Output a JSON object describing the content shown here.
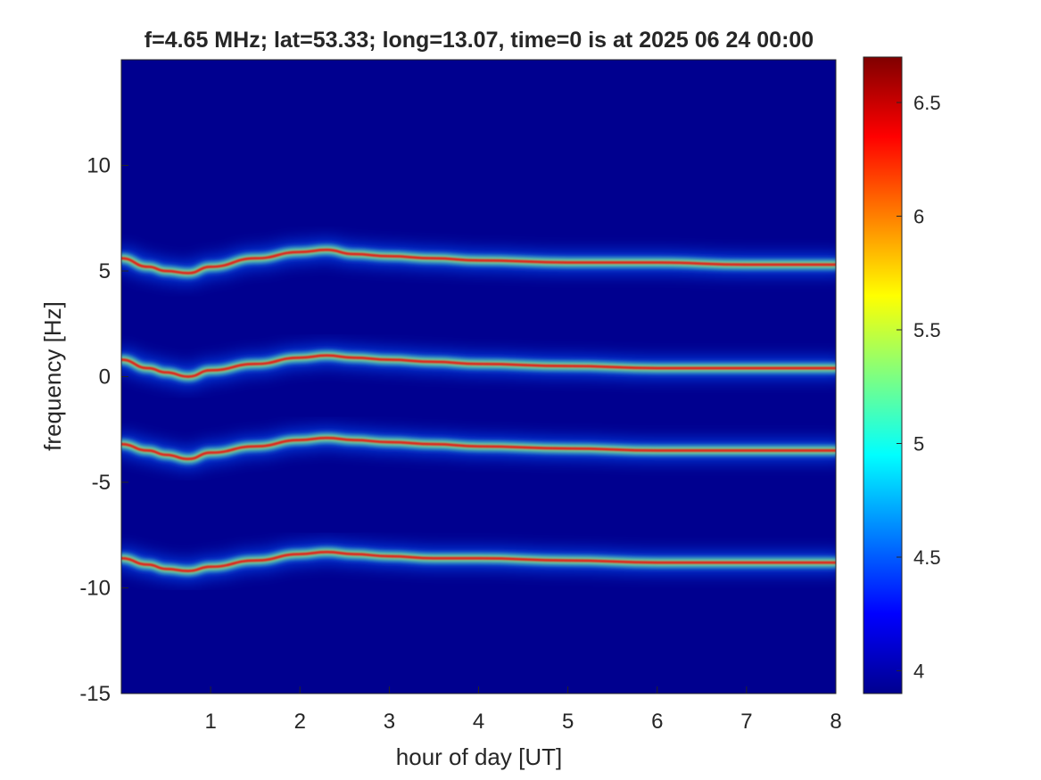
{
  "chart_data": {
    "type": "heatmap",
    "title": "f=4.65 MHz;  lat=53.33; long=13.07, time=0 is at 2025 06 24 00:00",
    "xlabel": "hour of day [UT]",
    "ylabel": "frequency [Hz]",
    "xlim": [
      0,
      8
    ],
    "ylim": [
      -15,
      15
    ],
    "x_ticks": [
      1,
      2,
      3,
      4,
      5,
      6,
      7,
      8
    ],
    "x_tick_labels": [
      "1",
      "2",
      "3",
      "4",
      "5",
      "6",
      "7",
      "8"
    ],
    "y_ticks": [
      10,
      5,
      0,
      -5,
      -10,
      -15
    ],
    "y_tick_labels": [
      "10",
      "5",
      "0",
      "-5",
      "-10",
      "-15"
    ],
    "grid": false,
    "colormap": "jet",
    "background_color": "#00008f",
    "colorbar": {
      "range": [
        3.9,
        6.7
      ],
      "ticks": [
        4,
        4.5,
        5,
        5.5,
        6,
        6.5
      ],
      "tick_labels": [
        "4",
        "4.5",
        "5",
        "5.5",
        "6",
        "6.5"
      ]
    },
    "traces": [
      {
        "points": [
          [
            0,
            5.6
          ],
          [
            0.3,
            5.2
          ],
          [
            0.5,
            5.0
          ],
          [
            0.75,
            4.9
          ],
          [
            1.0,
            5.2
          ],
          [
            1.5,
            5.6
          ],
          [
            2.0,
            5.9
          ],
          [
            2.3,
            6.0
          ],
          [
            2.6,
            5.8
          ],
          [
            3.0,
            5.7
          ],
          [
            3.5,
            5.6
          ],
          [
            4.0,
            5.5
          ],
          [
            5.0,
            5.4
          ],
          [
            6.0,
            5.4
          ],
          [
            7.0,
            5.3
          ],
          [
            8.0,
            5.3
          ]
        ]
      },
      {
        "points": [
          [
            0,
            0.8
          ],
          [
            0.3,
            0.4
          ],
          [
            0.5,
            0.2
          ],
          [
            0.75,
            0.0
          ],
          [
            1.0,
            0.3
          ],
          [
            1.5,
            0.6
          ],
          [
            2.0,
            0.9
          ],
          [
            2.3,
            1.0
          ],
          [
            2.6,
            0.9
          ],
          [
            3.0,
            0.8
          ],
          [
            3.5,
            0.7
          ],
          [
            4.0,
            0.6
          ],
          [
            5.0,
            0.5
          ],
          [
            6.0,
            0.4
          ],
          [
            7.0,
            0.4
          ],
          [
            8.0,
            0.4
          ]
        ]
      },
      {
        "points": [
          [
            0,
            -3.2
          ],
          [
            0.3,
            -3.5
          ],
          [
            0.5,
            -3.7
          ],
          [
            0.75,
            -3.9
          ],
          [
            1.0,
            -3.6
          ],
          [
            1.5,
            -3.3
          ],
          [
            2.0,
            -3.0
          ],
          [
            2.3,
            -2.9
          ],
          [
            2.6,
            -3.0
          ],
          [
            3.0,
            -3.1
          ],
          [
            3.5,
            -3.2
          ],
          [
            4.0,
            -3.3
          ],
          [
            5.0,
            -3.4
          ],
          [
            6.0,
            -3.5
          ],
          [
            7.0,
            -3.5
          ],
          [
            8.0,
            -3.5
          ]
        ]
      },
      {
        "points": [
          [
            0,
            -8.6
          ],
          [
            0.3,
            -8.9
          ],
          [
            0.5,
            -9.1
          ],
          [
            0.75,
            -9.2
          ],
          [
            1.0,
            -9.0
          ],
          [
            1.5,
            -8.7
          ],
          [
            2.0,
            -8.4
          ],
          [
            2.3,
            -8.3
          ],
          [
            2.6,
            -8.4
          ],
          [
            3.0,
            -8.5
          ],
          [
            3.5,
            -8.6
          ],
          [
            4.0,
            -8.6
          ],
          [
            5.0,
            -8.7
          ],
          [
            6.0,
            -8.8
          ],
          [
            7.0,
            -8.8
          ],
          [
            8.0,
            -8.8
          ]
        ]
      }
    ]
  }
}
